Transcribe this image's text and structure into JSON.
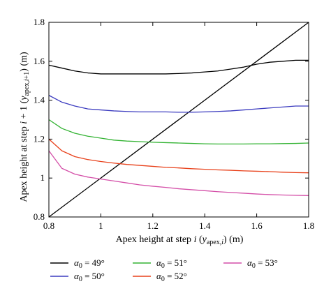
{
  "chart_data": {
    "type": "line",
    "xlabel": "Apex height at step i (y_apex,i) (m)",
    "ylabel": "Apex height at step i + 1 (y_apex,i+1) (m)",
    "xlim": [
      0.8,
      1.8
    ],
    "ylim": [
      0.8,
      1.8
    ],
    "xticks": [
      "0.8",
      "1",
      "1.2",
      "1.4",
      "1.6",
      "1.8"
    ],
    "yticks": [
      "0.8",
      "1",
      "1.2",
      "1.4",
      "1.6",
      "1.8"
    ],
    "grid": false,
    "legend_position": "bottom",
    "reference_line": {
      "x": [
        0.8,
        1.8
      ],
      "y": [
        0.8,
        1.8
      ],
      "color": "#000000"
    },
    "series": [
      {
        "name": "α0 = 49°",
        "color": "#000000",
        "x": [
          0.8,
          0.85,
          0.9,
          0.95,
          1.0,
          1.05,
          1.1,
          1.15,
          1.2,
          1.25,
          1.3,
          1.35,
          1.4,
          1.45,
          1.5,
          1.55,
          1.6,
          1.65,
          1.7,
          1.75,
          1.8
        ],
        "y": [
          1.58,
          1.565,
          1.55,
          1.54,
          1.535,
          1.535,
          1.535,
          1.535,
          1.535,
          1.535,
          1.537,
          1.54,
          1.545,
          1.55,
          1.56,
          1.57,
          1.585,
          1.595,
          1.6,
          1.605,
          1.605
        ]
      },
      {
        "name": "α0 = 50°",
        "color": "#3b3bbf",
        "x": [
          0.8,
          0.85,
          0.9,
          0.95,
          1.0,
          1.05,
          1.1,
          1.15,
          1.2,
          1.25,
          1.3,
          1.35,
          1.4,
          1.45,
          1.5,
          1.55,
          1.6,
          1.65,
          1.7,
          1.75,
          1.8
        ],
        "y": [
          1.425,
          1.39,
          1.37,
          1.355,
          1.35,
          1.345,
          1.342,
          1.34,
          1.34,
          1.34,
          1.338,
          1.338,
          1.34,
          1.342,
          1.345,
          1.35,
          1.355,
          1.36,
          1.365,
          1.37,
          1.37
        ]
      },
      {
        "name": "α0 = 51°",
        "color": "#33b333",
        "x": [
          0.8,
          0.85,
          0.9,
          0.95,
          1.0,
          1.05,
          1.1,
          1.15,
          1.2,
          1.25,
          1.3,
          1.35,
          1.4,
          1.45,
          1.5,
          1.55,
          1.6,
          1.65,
          1.7,
          1.75,
          1.8
        ],
        "y": [
          1.3,
          1.255,
          1.23,
          1.215,
          1.205,
          1.195,
          1.19,
          1.187,
          1.184,
          1.182,
          1.18,
          1.178,
          1.176,
          1.175,
          1.175,
          1.175,
          1.176,
          1.176,
          1.177,
          1.178,
          1.18
        ]
      },
      {
        "name": "α0 = 52°",
        "color": "#e8401a",
        "x": [
          0.8,
          0.85,
          0.9,
          0.95,
          1.0,
          1.05,
          1.1,
          1.15,
          1.2,
          1.25,
          1.3,
          1.35,
          1.4,
          1.45,
          1.5,
          1.55,
          1.6,
          1.65,
          1.7,
          1.75,
          1.8
        ],
        "y": [
          1.2,
          1.14,
          1.11,
          1.095,
          1.085,
          1.077,
          1.07,
          1.065,
          1.06,
          1.055,
          1.052,
          1.048,
          1.045,
          1.042,
          1.04,
          1.037,
          1.035,
          1.033,
          1.03,
          1.028,
          1.027
        ]
      },
      {
        "name": "α0 = 53°",
        "color": "#d44fa8",
        "x": [
          0.8,
          0.85,
          0.9,
          0.95,
          1.0,
          1.05,
          1.1,
          1.15,
          1.2,
          1.25,
          1.3,
          1.35,
          1.4,
          1.45,
          1.5,
          1.55,
          1.6,
          1.65,
          1.7,
          1.75,
          1.8
        ],
        "y": [
          1.14,
          1.05,
          1.02,
          1.005,
          0.995,
          0.985,
          0.975,
          0.965,
          0.958,
          0.952,
          0.945,
          0.94,
          0.935,
          0.93,
          0.926,
          0.922,
          0.918,
          0.915,
          0.913,
          0.911,
          0.91
        ]
      }
    ]
  }
}
